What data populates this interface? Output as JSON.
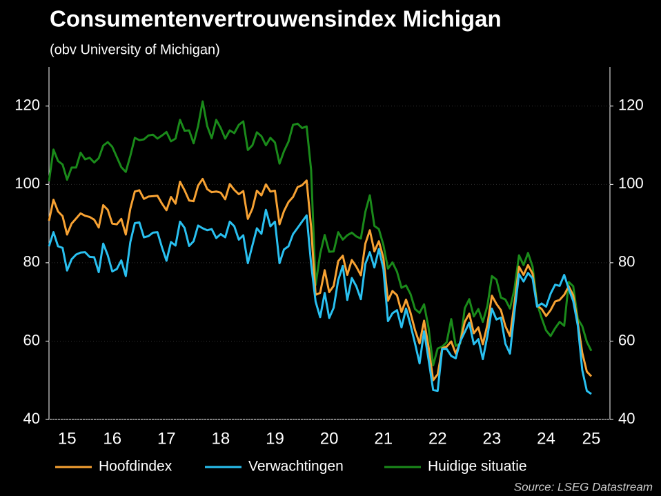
{
  "chart_data": {
    "type": "line",
    "title": "Consumentenvertrouwensindex Michigan",
    "subtitle": "(obv University of Michigan)",
    "source": "Source: LSEG Datastream",
    "categories": [
      null,
      null,
      null,
      null,
      "15",
      null,
      null,
      null,
      null,
      null,
      null,
      null,
      null,
      null,
      "16",
      null,
      null,
      null,
      null,
      null,
      null,
      null,
      null,
      null,
      null,
      null,
      "17",
      null,
      null,
      null,
      null,
      null,
      null,
      null,
      null,
      null,
      null,
      null,
      "18",
      null,
      null,
      null,
      null,
      null,
      null,
      null,
      null,
      null,
      null,
      null,
      "19",
      null,
      null,
      null,
      null,
      null,
      null,
      null,
      null,
      null,
      null,
      null,
      "20",
      null,
      null,
      null,
      null,
      null,
      null,
      null,
      null,
      null,
      null,
      null,
      "21",
      null,
      null,
      null,
      null,
      null,
      null,
      null,
      null,
      null,
      null,
      null,
      "22",
      null,
      null,
      null,
      null,
      null,
      null,
      null,
      null,
      null,
      null,
      null,
      "23",
      null,
      null,
      null,
      null,
      null,
      null,
      null,
      null,
      null,
      null,
      null,
      "24",
      null,
      null,
      null,
      null,
      null,
      null,
      null,
      null,
      null,
      "25"
    ],
    "series": [
      {
        "name": "Hoofdindex",
        "color": "#f7a233",
        "values": [
          90.7,
          96.1,
          93.1,
          91.9,
          87.2,
          90.0,
          91.3,
          92.6,
          92.0,
          91.7,
          91.0,
          89.0,
          94.7,
          93.5,
          90.0,
          89.8,
          91.2,
          87.2,
          93.8,
          98.2,
          98.5,
          96.3,
          96.9,
          97.0,
          97.1,
          95.1,
          93.4,
          96.8,
          95.1,
          100.7,
          98.5,
          95.9,
          95.7,
          99.7,
          101.4,
          98.8,
          98.0,
          98.2,
          97.9,
          96.2,
          100.1,
          98.6,
          97.5,
          98.3,
          91.2,
          93.8,
          98.4,
          97.2,
          100.0,
          98.2,
          98.4,
          89.8,
          93.2,
          95.5,
          96.8,
          99.3,
          99.8,
          101.0,
          89.1,
          71.8,
          72.3,
          78.1,
          72.5,
          74.1,
          80.4,
          81.8,
          76.9,
          80.7,
          79.0,
          76.8,
          84.9,
          88.3,
          82.9,
          85.5,
          81.2,
          70.3,
          72.8,
          71.7,
          67.4,
          70.6,
          67.2,
          62.8,
          59.4,
          65.2,
          58.4,
          50.0,
          51.5,
          58.2,
          58.6,
          59.9,
          56.8,
          59.7,
          64.9,
          67.0,
          62.0,
          63.5,
          59.2,
          64.2,
          71.6,
          69.5,
          67.9,
          63.8,
          61.3,
          69.7,
          79.0,
          76.9,
          79.4,
          77.2,
          69.1,
          68.2,
          66.4,
          67.9,
          70.1,
          70.5,
          71.8,
          74.0,
          71.7,
          64.7,
          57.0,
          52.2,
          51.0
        ]
      },
      {
        "name": "Verwachtingen",
        "color": "#29c0f0",
        "values": [
          84.2,
          87.8,
          84.2,
          83.8,
          78.0,
          80.9,
          82.1,
          82.6,
          82.7,
          81.5,
          81.4,
          77.6,
          84.9,
          81.9,
          77.8,
          78.4,
          80.6,
          76.6,
          85.3,
          90.1,
          90.3,
          86.5,
          86.8,
          87.7,
          87.8,
          83.9,
          80.5,
          85.3,
          84.4,
          90.5,
          88.9,
          84.3,
          85.5,
          89.5,
          88.8,
          88.3,
          88.6,
          86.3,
          87.3,
          86.5,
          90.5,
          89.3,
          85.9,
          87.0,
          79.9,
          84.4,
          88.8,
          87.4,
          93.5,
          89.3,
          90.5,
          79.9,
          83.4,
          84.2,
          87.3,
          88.9,
          90.5,
          92.1,
          79.7,
          70.1,
          66.1,
          72.3,
          65.9,
          68.5,
          75.6,
          79.2,
          70.5,
          76.1,
          74.0,
          70.7,
          79.7,
          82.7,
          78.8,
          83.5,
          78.4,
          65.1,
          67.1,
          67.9,
          63.5,
          68.3,
          64.1,
          59.4,
          54.3,
          62.5,
          55.2,
          47.5,
          47.3,
          58.0,
          58.0,
          56.2,
          55.6,
          59.9,
          62.3,
          64.7,
          59.2,
          60.5,
          55.4,
          61.3,
          68.3,
          65.5,
          66.0,
          59.3,
          56.8,
          67.4,
          77.1,
          75.2,
          77.4,
          76.0,
          68.8,
          69.6,
          68.8,
          72.1,
          74.4,
          74.1,
          76.9,
          73.3,
          70.2,
          64.0,
          52.6,
          47.3,
          46.5
        ]
      },
      {
        "name": "Huidige situatie",
        "color": "#1a8a1a",
        "values": [
          100.8,
          108.9,
          106.0,
          105.1,
          101.2,
          104.3,
          104.3,
          108.1,
          106.4,
          106.8,
          105.6,
          106.7,
          109.9,
          110.8,
          109.6,
          107.0,
          104.4,
          103.2,
          107.3,
          111.9,
          111.3,
          111.5,
          112.5,
          112.7,
          111.7,
          112.5,
          113.4,
          111.0,
          111.7,
          116.5,
          113.7,
          113.8,
          110.5,
          114.9,
          121.2,
          114.9,
          111.8,
          116.5,
          114.4,
          111.7,
          113.8,
          113.1,
          115.2,
          116.1,
          108.8,
          110.0,
          113.3,
          112.3,
          110.0,
          111.9,
          110.7,
          105.3,
          108.5,
          110.9,
          115.2,
          115.5,
          114.4,
          114.8,
          103.7,
          74.3,
          82.3,
          87.1,
          82.8,
          82.9,
          87.8,
          85.9,
          87.0,
          87.7,
          86.7,
          86.2,
          93.0,
          97.2,
          89.4,
          88.6,
          84.5,
          78.5,
          80.1,
          77.7,
          73.6,
          74.2,
          72.0,
          68.2,
          67.2,
          69.4,
          63.3,
          53.8,
          58.1,
          58.6,
          59.7,
          65.6,
          58.8,
          59.4,
          68.4,
          70.7,
          66.3,
          68.2,
          64.9,
          69.0,
          76.6,
          75.7,
          71.1,
          70.6,
          68.3,
          73.3,
          81.9,
          79.4,
          82.5,
          79.0,
          69.6,
          65.9,
          62.7,
          61.3,
          63.3,
          64.9,
          63.9,
          75.1,
          74.0,
          65.7,
          63.8,
          59.8,
          57.5
        ]
      }
    ],
    "ylim": [
      40,
      130
    ],
    "yticks": [
      40,
      60,
      80,
      100,
      120
    ],
    "y2lim": [
      40,
      130
    ],
    "y2ticks": [
      40,
      60,
      80,
      100,
      120
    ],
    "grid": true,
    "legend": "bottom"
  }
}
